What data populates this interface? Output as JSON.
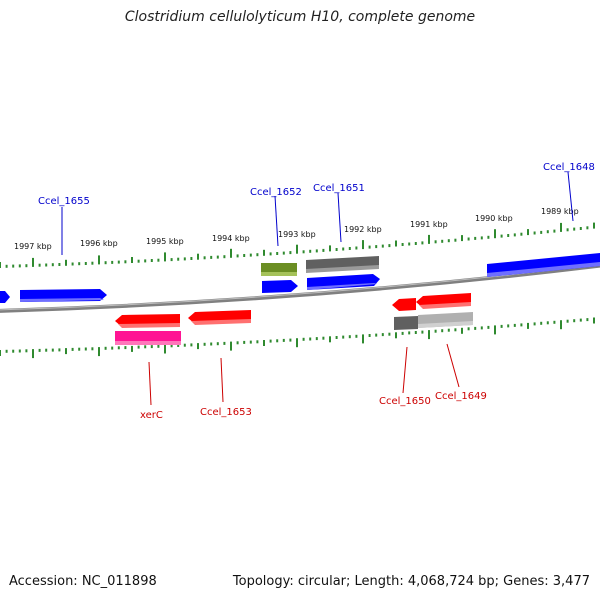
{
  "title": "Clostridium cellulolyticum H10, complete genome",
  "footer": {
    "accession": "Accession: NC_011898",
    "stats": "Topology: circular; Length: 4,068,724 bp; Genes: 3,477"
  },
  "colors": {
    "backbone": "#808080",
    "ticks": "#2f8a2f",
    "forward_label": "#0000cc",
    "reverse_label": "#cc0000",
    "blue_gene": "#0000ff",
    "red_gene": "#ff0000",
    "olive_gene": "#6b8e23",
    "grey_gene": "#606060",
    "light_grey_gene": "#b0b0b0",
    "pink_gene": "#ff1493"
  },
  "scale_labels": [
    "1997 kbp",
    "1996 kbp",
    "1995 kbp",
    "1994 kbp",
    "1993 kbp",
    "1992 kbp",
    "1991 kbp",
    "1990 kbp",
    "1989 kbp"
  ],
  "gene_labels": {
    "forward": [
      "Ccel_1655",
      "Ccel_1652",
      "Ccel_1651",
      "Ccel_1648"
    ],
    "reverse": [
      "xerC",
      "Ccel_1653",
      "Ccel_1650",
      "Ccel_1649"
    ]
  }
}
